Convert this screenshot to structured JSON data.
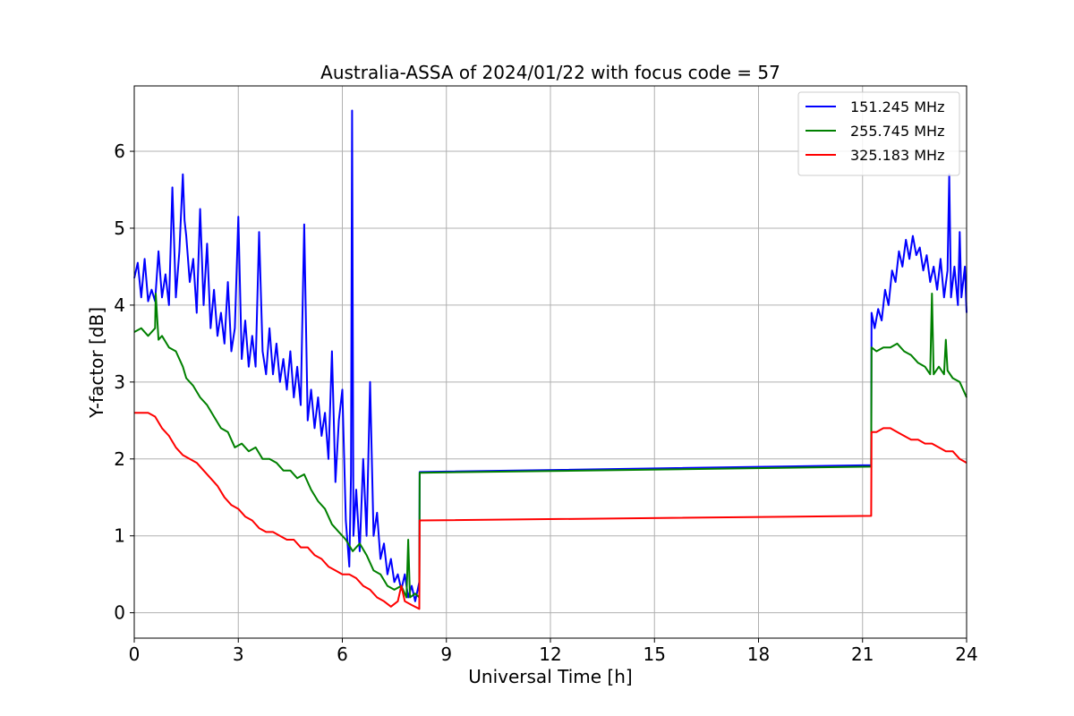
{
  "chart_data": {
    "type": "line",
    "title": "Australia-ASSA of 2024/01/22 with focus code = 57",
    "xlabel": "Universal Time [h]",
    "ylabel": "Y-factor [dB]",
    "xlim": [
      0,
      24
    ],
    "ylim": [
      -0.33,
      6.85
    ],
    "xticks": [
      0,
      3,
      6,
      9,
      12,
      15,
      18,
      21,
      24
    ],
    "yticks": [
      0,
      1,
      2,
      3,
      4,
      5,
      6
    ],
    "grid": true,
    "legend_position": "top-right",
    "series": [
      {
        "name": "151.245 MHz",
        "color": "#0000ff",
        "points": [
          [
            0.0,
            4.35
          ],
          [
            0.1,
            4.55
          ],
          [
            0.2,
            4.1
          ],
          [
            0.3,
            4.6
          ],
          [
            0.4,
            4.05
          ],
          [
            0.5,
            4.2
          ],
          [
            0.6,
            4.05
          ],
          [
            0.7,
            4.7
          ],
          [
            0.8,
            4.1
          ],
          [
            0.9,
            4.4
          ],
          [
            1.0,
            4.0
          ],
          [
            1.1,
            5.53
          ],
          [
            1.2,
            4.1
          ],
          [
            1.3,
            4.7
          ],
          [
            1.4,
            5.7
          ],
          [
            1.45,
            5.1
          ],
          [
            1.5,
            4.9
          ],
          [
            1.6,
            4.3
          ],
          [
            1.7,
            4.6
          ],
          [
            1.8,
            3.9
          ],
          [
            1.9,
            5.25
          ],
          [
            2.0,
            4.0
          ],
          [
            2.1,
            4.8
          ],
          [
            2.2,
            3.7
          ],
          [
            2.3,
            4.2
          ],
          [
            2.4,
            3.6
          ],
          [
            2.5,
            3.9
          ],
          [
            2.6,
            3.5
          ],
          [
            2.7,
            4.3
          ],
          [
            2.8,
            3.4
          ],
          [
            2.9,
            3.7
          ],
          [
            3.0,
            5.15
          ],
          [
            3.1,
            3.3
          ],
          [
            3.2,
            3.8
          ],
          [
            3.3,
            3.2
          ],
          [
            3.4,
            3.6
          ],
          [
            3.5,
            3.2
          ],
          [
            3.6,
            4.95
          ],
          [
            3.7,
            3.4
          ],
          [
            3.8,
            3.1
          ],
          [
            3.9,
            3.7
          ],
          [
            4.0,
            3.1
          ],
          [
            4.1,
            3.5
          ],
          [
            4.2,
            3.0
          ],
          [
            4.3,
            3.3
          ],
          [
            4.4,
            2.9
          ],
          [
            4.5,
            3.4
          ],
          [
            4.6,
            2.8
          ],
          [
            4.7,
            3.2
          ],
          [
            4.8,
            2.7
          ],
          [
            4.9,
            5.05
          ],
          [
            5.0,
            2.5
          ],
          [
            5.1,
            2.9
          ],
          [
            5.2,
            2.4
          ],
          [
            5.3,
            2.8
          ],
          [
            5.4,
            2.3
          ],
          [
            5.5,
            2.6
          ],
          [
            5.6,
            2.0
          ],
          [
            5.7,
            3.4
          ],
          [
            5.8,
            1.7
          ],
          [
            5.9,
            2.5
          ],
          [
            6.0,
            2.9
          ],
          [
            6.1,
            1.2
          ],
          [
            6.2,
            0.6
          ],
          [
            6.25,
            1.8
          ],
          [
            6.28,
            6.53
          ],
          [
            6.32,
            1.0
          ],
          [
            6.4,
            1.6
          ],
          [
            6.5,
            0.8
          ],
          [
            6.6,
            2.0
          ],
          [
            6.7,
            1.0
          ],
          [
            6.8,
            3.0
          ],
          [
            6.9,
            1.0
          ],
          [
            7.0,
            1.3
          ],
          [
            7.1,
            0.7
          ],
          [
            7.2,
            0.9
          ],
          [
            7.3,
            0.5
          ],
          [
            7.4,
            0.7
          ],
          [
            7.5,
            0.4
          ],
          [
            7.6,
            0.5
          ],
          [
            7.7,
            0.3
          ],
          [
            7.8,
            0.5
          ],
          [
            7.9,
            0.2
          ],
          [
            8.0,
            0.35
          ],
          [
            8.1,
            0.15
          ],
          [
            8.22,
            0.4
          ],
          [
            8.23,
            1.83
          ],
          [
            21.25,
            1.92
          ],
          [
            21.26,
            3.9
          ],
          [
            21.35,
            3.7
          ],
          [
            21.45,
            3.95
          ],
          [
            21.55,
            3.8
          ],
          [
            21.65,
            4.2
          ],
          [
            21.75,
            4.0
          ],
          [
            21.85,
            4.45
          ],
          [
            21.95,
            4.3
          ],
          [
            22.05,
            4.7
          ],
          [
            22.15,
            4.5
          ],
          [
            22.25,
            4.85
          ],
          [
            22.35,
            4.6
          ],
          [
            22.45,
            4.9
          ],
          [
            22.55,
            4.65
          ],
          [
            22.65,
            4.75
          ],
          [
            22.75,
            4.45
          ],
          [
            22.85,
            4.65
          ],
          [
            22.95,
            4.3
          ],
          [
            23.05,
            4.5
          ],
          [
            23.15,
            4.2
          ],
          [
            23.25,
            4.6
          ],
          [
            23.35,
            4.1
          ],
          [
            23.45,
            4.45
          ],
          [
            23.5,
            5.7
          ],
          [
            23.55,
            4.1
          ],
          [
            23.65,
            4.5
          ],
          [
            23.75,
            4.0
          ],
          [
            23.8,
            4.95
          ],
          [
            23.85,
            4.1
          ],
          [
            23.95,
            4.5
          ],
          [
            24.0,
            3.9
          ]
        ]
      },
      {
        "name": "255.745 MHz",
        "color": "#008000",
        "points": [
          [
            0.0,
            3.65
          ],
          [
            0.2,
            3.7
          ],
          [
            0.4,
            3.6
          ],
          [
            0.6,
            3.7
          ],
          [
            0.62,
            4.15
          ],
          [
            0.7,
            3.55
          ],
          [
            0.8,
            3.6
          ],
          [
            1.0,
            3.45
          ],
          [
            1.2,
            3.4
          ],
          [
            1.4,
            3.2
          ],
          [
            1.5,
            3.05
          ],
          [
            1.7,
            2.95
          ],
          [
            1.9,
            2.8
          ],
          [
            2.1,
            2.7
          ],
          [
            2.3,
            2.55
          ],
          [
            2.5,
            2.4
          ],
          [
            2.7,
            2.35
          ],
          [
            2.9,
            2.15
          ],
          [
            3.1,
            2.2
          ],
          [
            3.3,
            2.1
          ],
          [
            3.5,
            2.15
          ],
          [
            3.7,
            2.0
          ],
          [
            3.9,
            2.0
          ],
          [
            4.1,
            1.95
          ],
          [
            4.3,
            1.85
          ],
          [
            4.5,
            1.85
          ],
          [
            4.7,
            1.75
          ],
          [
            4.9,
            1.8
          ],
          [
            5.1,
            1.6
          ],
          [
            5.3,
            1.45
          ],
          [
            5.5,
            1.35
          ],
          [
            5.7,
            1.15
          ],
          [
            5.9,
            1.05
          ],
          [
            6.1,
            0.95
          ],
          [
            6.3,
            0.8
          ],
          [
            6.5,
            0.9
          ],
          [
            6.7,
            0.75
          ],
          [
            6.9,
            0.55
          ],
          [
            7.1,
            0.5
          ],
          [
            7.3,
            0.35
          ],
          [
            7.5,
            0.3
          ],
          [
            7.7,
            0.35
          ],
          [
            7.85,
            0.2
          ],
          [
            7.9,
            0.95
          ],
          [
            7.95,
            0.2
          ],
          [
            8.1,
            0.25
          ],
          [
            8.22,
            0.2
          ],
          [
            8.23,
            1.82
          ],
          [
            21.25,
            1.9
          ],
          [
            21.26,
            3.45
          ],
          [
            21.4,
            3.4
          ],
          [
            21.6,
            3.45
          ],
          [
            21.8,
            3.45
          ],
          [
            22.0,
            3.5
          ],
          [
            22.2,
            3.4
          ],
          [
            22.4,
            3.35
          ],
          [
            22.6,
            3.25
          ],
          [
            22.8,
            3.2
          ],
          [
            22.95,
            3.1
          ],
          [
            23.0,
            4.15
          ],
          [
            23.05,
            3.1
          ],
          [
            23.2,
            3.2
          ],
          [
            23.35,
            3.1
          ],
          [
            23.4,
            3.55
          ],
          [
            23.45,
            3.15
          ],
          [
            23.6,
            3.05
          ],
          [
            23.8,
            3.0
          ],
          [
            24.0,
            2.8
          ]
        ]
      },
      {
        "name": "325.183 MHz",
        "color": "#ff0000",
        "points": [
          [
            0.0,
            2.6
          ],
          [
            0.2,
            2.6
          ],
          [
            0.4,
            2.6
          ],
          [
            0.6,
            2.55
          ],
          [
            0.8,
            2.4
          ],
          [
            1.0,
            2.3
          ],
          [
            1.2,
            2.15
          ],
          [
            1.4,
            2.05
          ],
          [
            1.6,
            2.0
          ],
          [
            1.8,
            1.95
          ],
          [
            2.0,
            1.85
          ],
          [
            2.2,
            1.75
          ],
          [
            2.4,
            1.65
          ],
          [
            2.6,
            1.5
          ],
          [
            2.8,
            1.4
          ],
          [
            3.0,
            1.35
          ],
          [
            3.2,
            1.25
          ],
          [
            3.4,
            1.2
          ],
          [
            3.6,
            1.1
          ],
          [
            3.8,
            1.05
          ],
          [
            4.0,
            1.05
          ],
          [
            4.2,
            1.0
          ],
          [
            4.4,
            0.95
          ],
          [
            4.6,
            0.95
          ],
          [
            4.8,
            0.85
          ],
          [
            5.0,
            0.85
          ],
          [
            5.2,
            0.75
          ],
          [
            5.4,
            0.7
          ],
          [
            5.6,
            0.6
          ],
          [
            5.8,
            0.55
          ],
          [
            6.0,
            0.5
          ],
          [
            6.2,
            0.5
          ],
          [
            6.4,
            0.45
          ],
          [
            6.6,
            0.35
          ],
          [
            6.8,
            0.3
          ],
          [
            7.0,
            0.2
          ],
          [
            7.2,
            0.15
          ],
          [
            7.4,
            0.08
          ],
          [
            7.6,
            0.15
          ],
          [
            7.7,
            0.35
          ],
          [
            7.8,
            0.15
          ],
          [
            8.0,
            0.1
          ],
          [
            8.22,
            0.05
          ],
          [
            8.23,
            1.2
          ],
          [
            21.25,
            1.26
          ],
          [
            21.26,
            2.35
          ],
          [
            21.4,
            2.35
          ],
          [
            21.6,
            2.4
          ],
          [
            21.8,
            2.4
          ],
          [
            22.0,
            2.35
          ],
          [
            22.2,
            2.3
          ],
          [
            22.4,
            2.25
          ],
          [
            22.6,
            2.25
          ],
          [
            22.8,
            2.2
          ],
          [
            23.0,
            2.2
          ],
          [
            23.2,
            2.15
          ],
          [
            23.4,
            2.1
          ],
          [
            23.6,
            2.1
          ],
          [
            23.8,
            2.0
          ],
          [
            24.0,
            1.95
          ]
        ]
      }
    ]
  }
}
